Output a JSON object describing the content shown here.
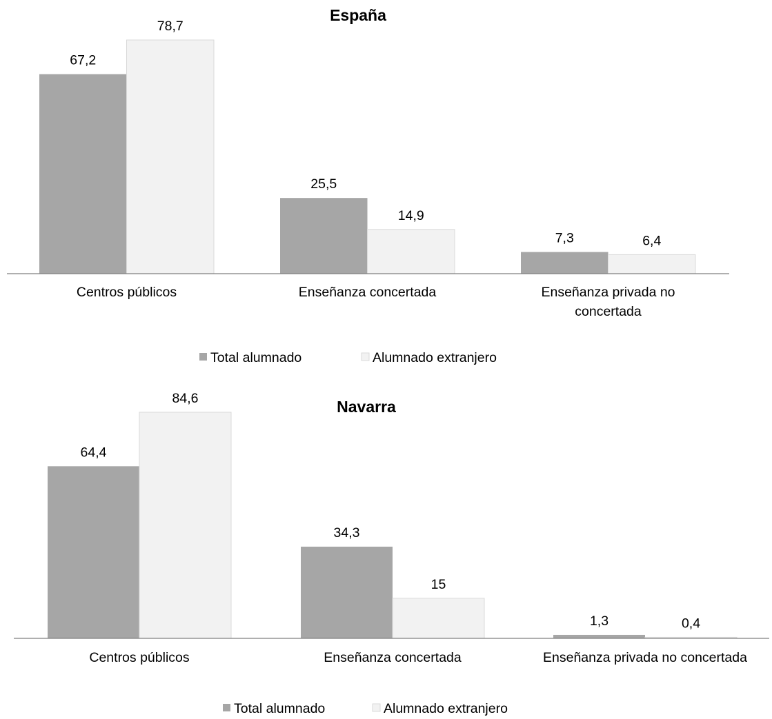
{
  "chart_data": [
    {
      "type": "bar",
      "title": "España",
      "categories": [
        [
          "Centros públicos"
        ],
        [
          "Enseñanza concertada"
        ],
        [
          "Enseñanza privada no",
          "concertada"
        ]
      ],
      "series": [
        {
          "name": "Total alumnado",
          "values": [
            67.2,
            25.5,
            7.3
          ],
          "labels": [
            "67,2",
            "25,5",
            "7,3"
          ],
          "color": "#a6a6a6"
        },
        {
          "name": "Alumnado extranjero",
          "values": [
            78.7,
            14.9,
            6.4
          ],
          "labels": [
            "78,7",
            "14,9",
            "6,4"
          ],
          "color": "#f2f2f2"
        }
      ],
      "ylim": [
        0,
        78.7
      ],
      "grid": false,
      "legend_position": "bottom"
    },
    {
      "type": "bar",
      "title": "Navarra",
      "categories": [
        [
          "Centros públicos"
        ],
        [
          "Enseñanza concertada"
        ],
        [
          "Enseñanza privada no concertada"
        ]
      ],
      "series": [
        {
          "name": "Total alumnado",
          "values": [
            64.4,
            34.3,
            1.3
          ],
          "labels": [
            "64,4",
            "34,3",
            "1,3"
          ],
          "color": "#a6a6a6"
        },
        {
          "name": "Alumnado extranjero",
          "values": [
            84.6,
            15,
            0.4
          ],
          "labels": [
            "84,6",
            "15",
            "0,4"
          ],
          "color": "#f2f2f2"
        }
      ],
      "ylim": [
        0,
        84.6
      ],
      "grid": false,
      "legend_position": "bottom"
    }
  ]
}
